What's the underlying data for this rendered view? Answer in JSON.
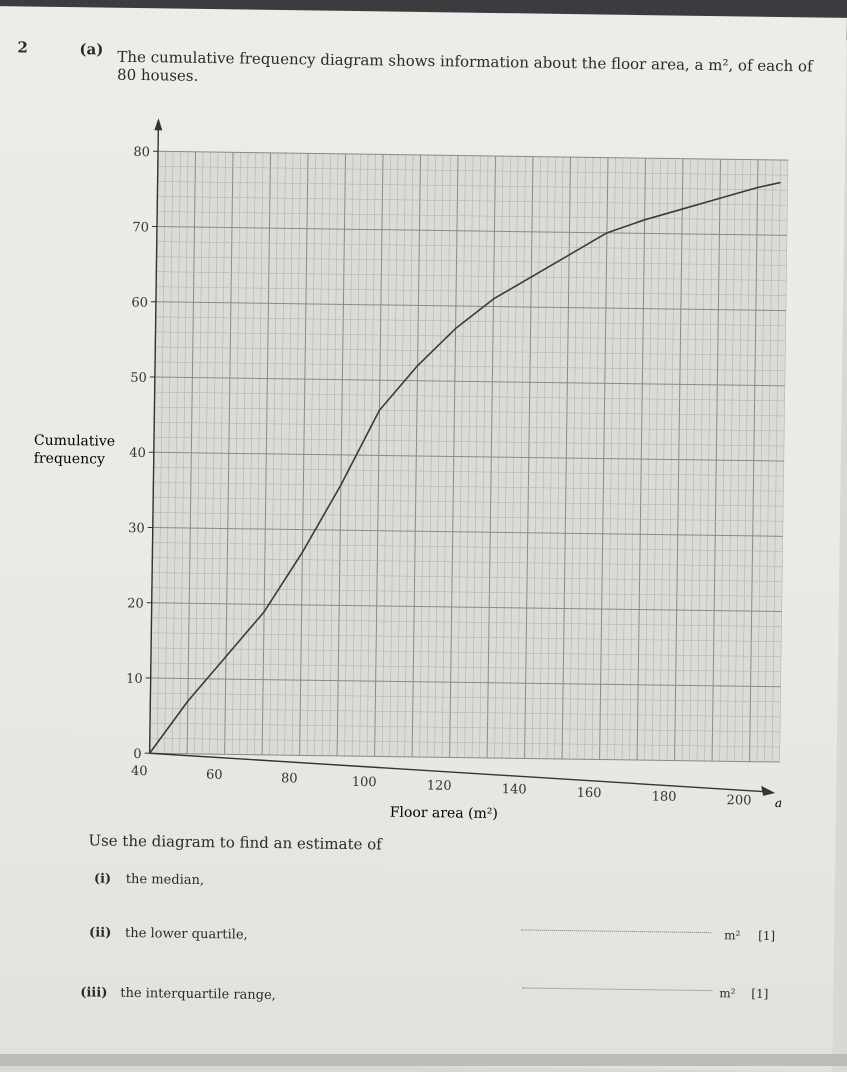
{
  "question": {
    "number": "2",
    "part": "(a)",
    "intro_line1": "The cumulative frequency diagram shows information about the floor area, a m², of each of",
    "intro_line2": "80 houses.",
    "instruction": "Use the diagram to find an estimate of",
    "items": [
      {
        "label": "(i)",
        "text": "the median,",
        "unit": "",
        "marks": ""
      },
      {
        "label": "(ii)",
        "text": "the lower quartile,",
        "unit": "m²",
        "marks": "[1]"
      },
      {
        "label": "(iii)",
        "text": "the interquartile range,",
        "unit": "m²",
        "marks": "[1]"
      }
    ]
  },
  "chart_data": {
    "type": "line",
    "xlabel": "Floor area (m²)",
    "ylabel_line1": "Cumulative",
    "ylabel_line2": "frequency",
    "x_axis_var": "a",
    "xlim": [
      40,
      206
    ],
    "ylim": [
      0,
      82
    ],
    "x_ticks": [
      40,
      60,
      80,
      100,
      120,
      140,
      160,
      180,
      200
    ],
    "y_ticks": [
      0,
      10,
      20,
      30,
      40,
      50,
      60,
      70,
      80
    ],
    "grid": true,
    "series": [
      {
        "x": [
          40,
          50,
          60,
          70,
          80,
          90,
          100,
          110,
          120,
          130,
          140,
          150,
          160,
          170,
          180,
          190,
          200,
          206
        ],
        "y": [
          0,
          7,
          13,
          19,
          27,
          36,
          46,
          52,
          57,
          61,
          64,
          67,
          70,
          71.8,
          73.3,
          74.8,
          76.3,
          77
        ]
      }
    ]
  }
}
